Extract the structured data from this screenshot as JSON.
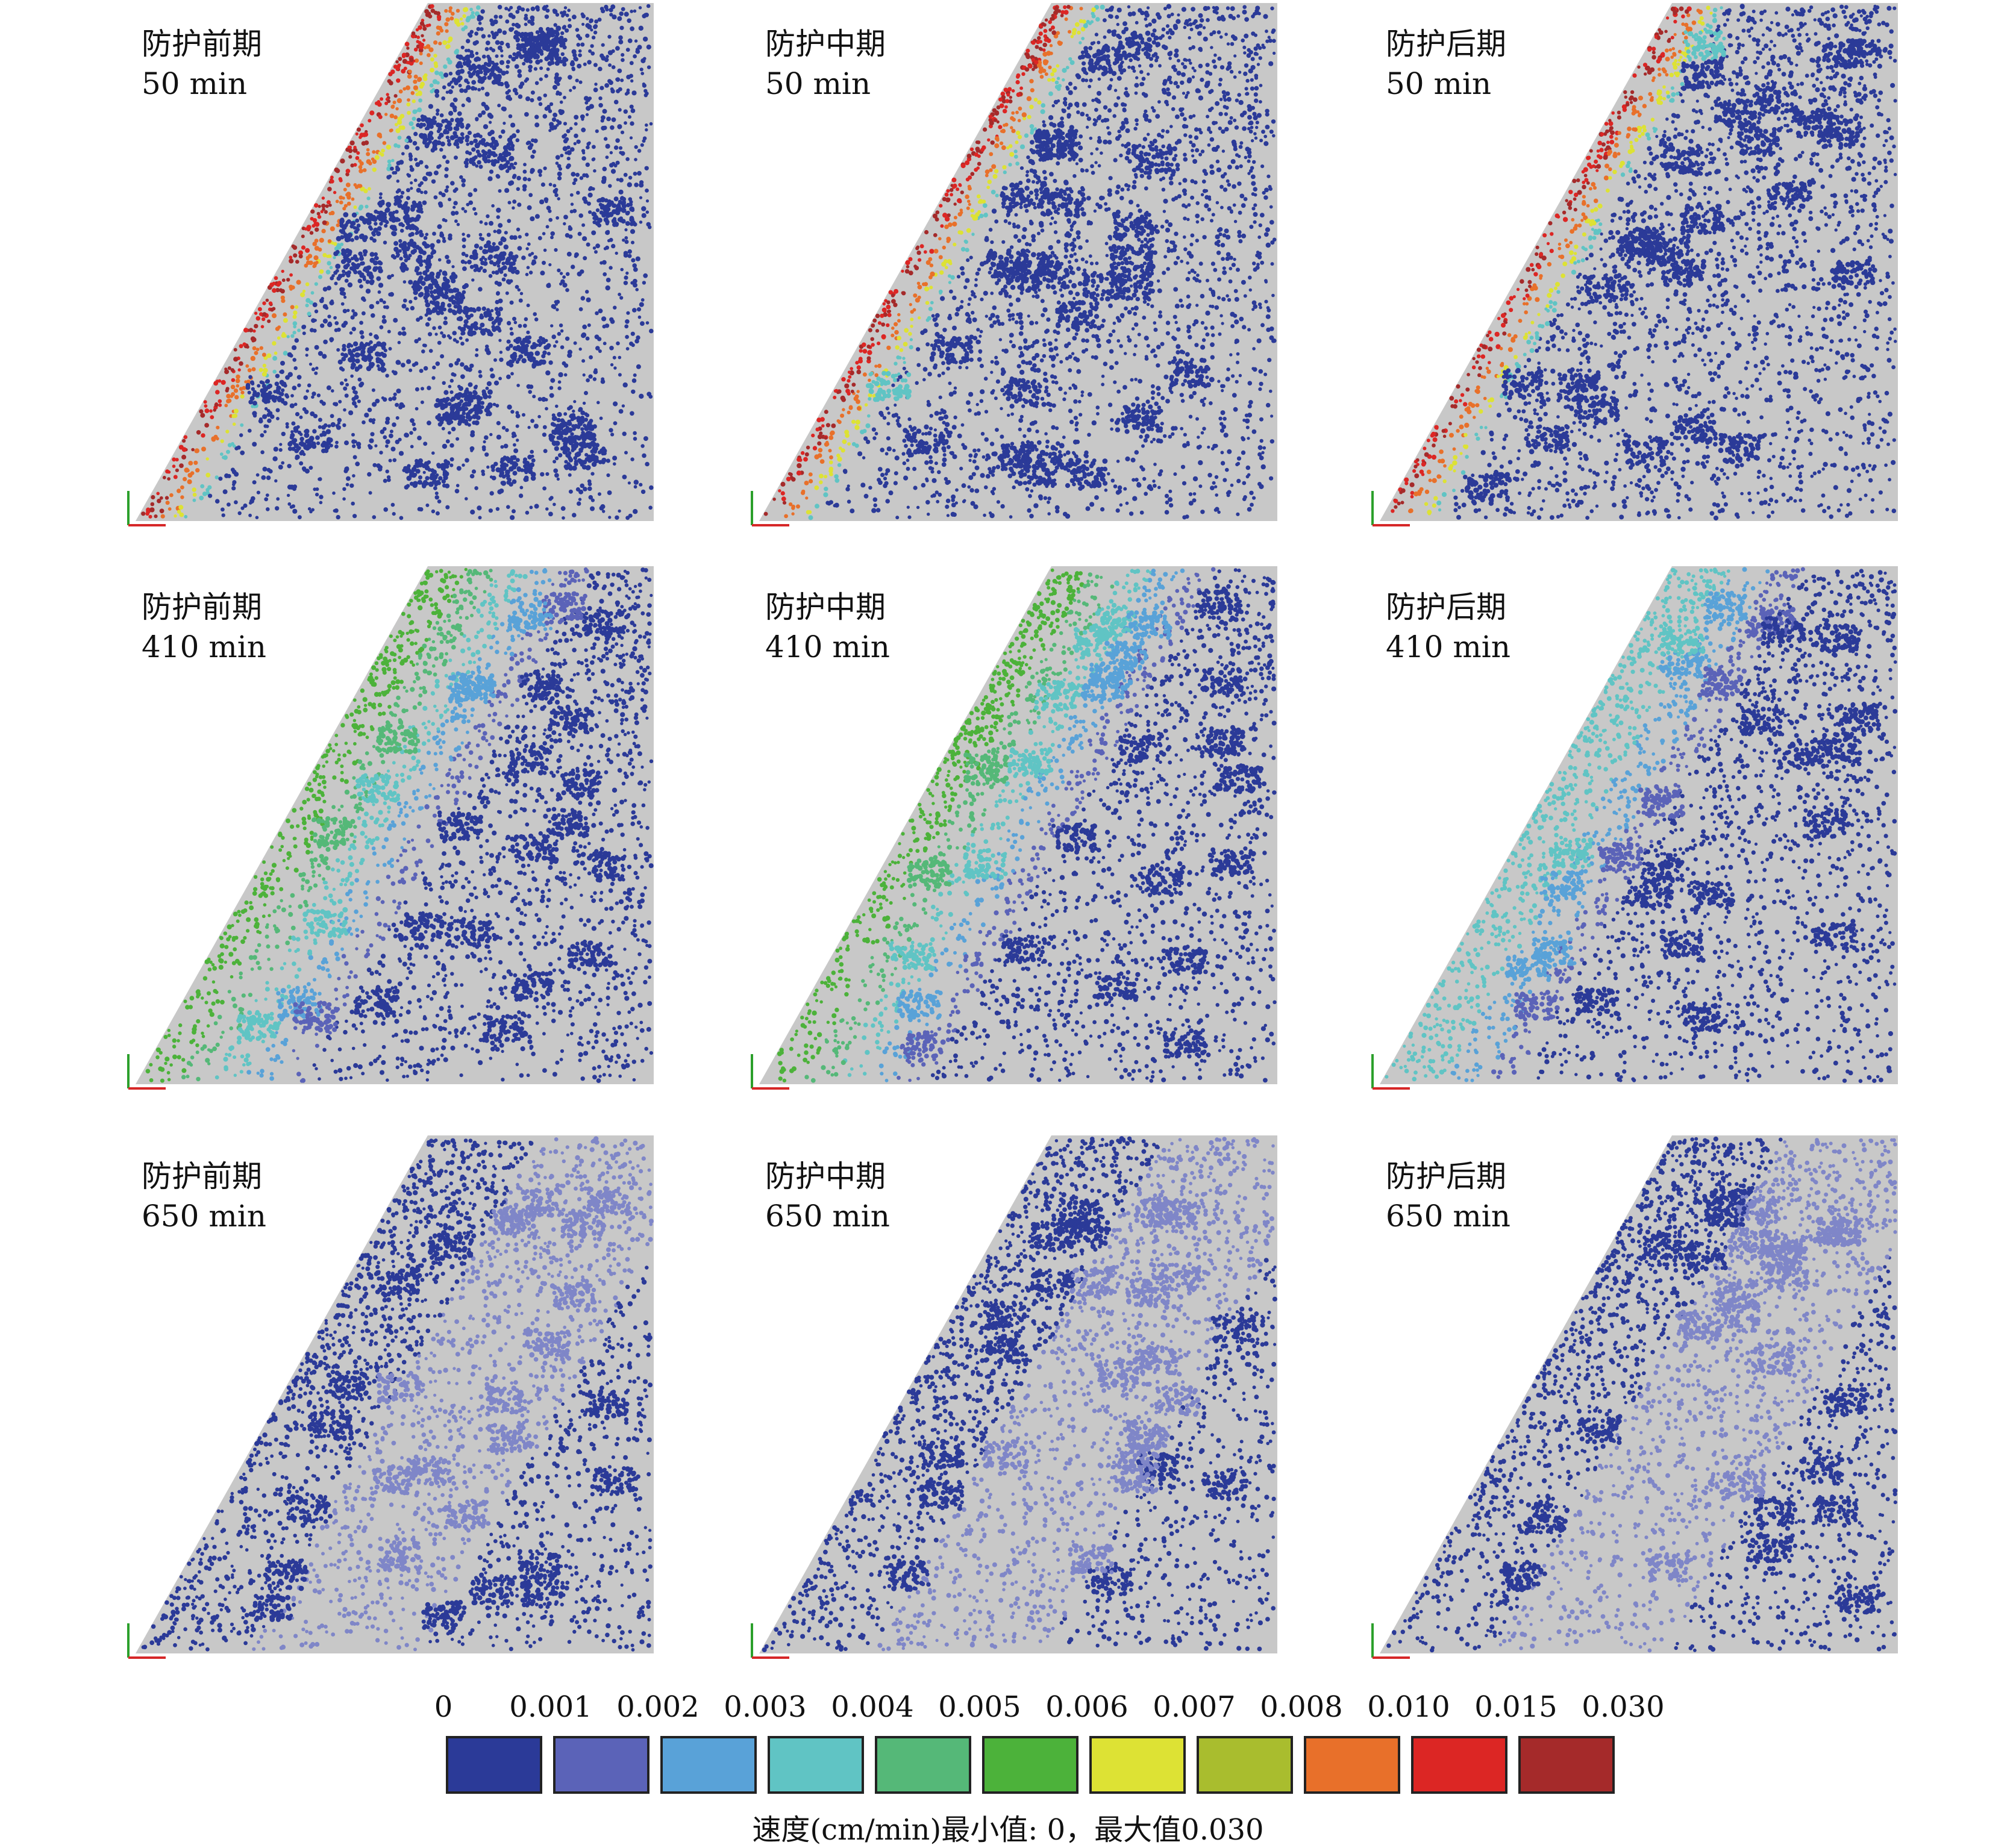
{
  "panels": [
    {
      "row": 0,
      "col": 0,
      "title": "防护前期",
      "time": "50 min",
      "phase": "pre",
      "t": 50
    },
    {
      "row": 0,
      "col": 1,
      "title": "防护中期",
      "time": "50 min",
      "phase": "mid",
      "t": 50
    },
    {
      "row": 0,
      "col": 2,
      "title": "防护后期",
      "time": "50 min",
      "phase": "post",
      "t": 50
    },
    {
      "row": 1,
      "col": 0,
      "title": "防护前期",
      "time": "410 min",
      "phase": "pre",
      "t": 410
    },
    {
      "row": 1,
      "col": 1,
      "title": "防护中期",
      "time": "410 min",
      "phase": "mid",
      "t": 410
    },
    {
      "row": 1,
      "col": 2,
      "title": "防护后期",
      "time": "410 min",
      "phase": "post",
      "t": 410
    },
    {
      "row": 2,
      "col": 0,
      "title": "防护前期",
      "time": "650 min",
      "phase": "pre",
      "t": 650
    },
    {
      "row": 2,
      "col": 1,
      "title": "防护中期",
      "time": "650 min",
      "phase": "mid",
      "t": 650
    },
    {
      "row": 2,
      "col": 2,
      "title": "防护后期",
      "time": "650 min",
      "phase": "post",
      "t": 650
    }
  ],
  "legend": {
    "ticks": [
      "0",
      "0.001",
      "0.002",
      "0.003",
      "0.004",
      "0.005",
      "0.006",
      "0.007",
      "0.008",
      "0.010",
      "0.015",
      "0.030"
    ],
    "colors": [
      "#2b3a98",
      "#5b63b8",
      "#59a2d8",
      "#60c4c4",
      "#55b878",
      "#4cb23a",
      "#dde234",
      "#a9bd2e",
      "#e8702a",
      "#dc2624",
      "#a52a2a"
    ],
    "caption": "速度(cm/min)最小值: 0，最大值0.030"
  },
  "colors": {
    "background_gray": "#c8c8c8",
    "particle_dark": "#2b3a98",
    "particle_light": "#7f86c8",
    "axis_green": "#2ca02c",
    "axis_red": "#d62728"
  }
}
